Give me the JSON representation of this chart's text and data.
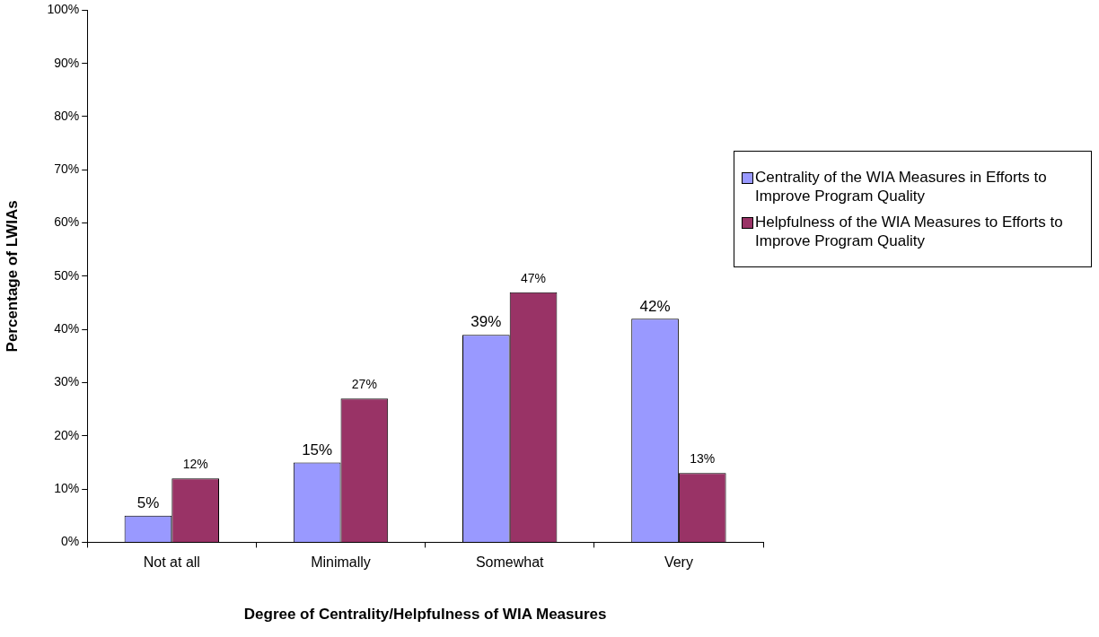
{
  "chart_data": {
    "type": "bar",
    "xlabel": "Degree of Centrality/Helpfulness of WIA Measures",
    "ylabel": "Percentage of LWIAs",
    "categories": [
      "Not at all",
      "Minimally",
      "Somewhat",
      "Very"
    ],
    "series": [
      {
        "name": "Centrality of the WIA Measures in Efforts to Improve Program Quality",
        "color": "#9999ff",
        "values": [
          5,
          15,
          39,
          42
        ],
        "value_labels": [
          "5%",
          "15%",
          "39%",
          "42%"
        ]
      },
      {
        "name": "Helpfulness of the WIA Measures to Efforts to Improve Program Quality",
        "color": "#993366",
        "values": [
          12,
          27,
          47,
          13
        ],
        "value_labels": [
          "12%",
          "27%",
          "47%",
          "13%"
        ]
      }
    ],
    "ylim": [
      0,
      100
    ],
    "yticks": [
      {
        "value": 0,
        "label": "0%"
      },
      {
        "value": 10,
        "label": "10%"
      },
      {
        "value": 20,
        "label": "20%"
      },
      {
        "value": 30,
        "label": "30%"
      },
      {
        "value": 40,
        "label": "40%"
      },
      {
        "value": 50,
        "label": "50%"
      },
      {
        "value": 60,
        "label": "60%"
      },
      {
        "value": 70,
        "label": "70%"
      },
      {
        "value": 80,
        "label": "80%"
      },
      {
        "value": 90,
        "label": "90%"
      },
      {
        "value": 100,
        "label": "100%"
      }
    ],
    "grid": false,
    "legend": "right"
  }
}
